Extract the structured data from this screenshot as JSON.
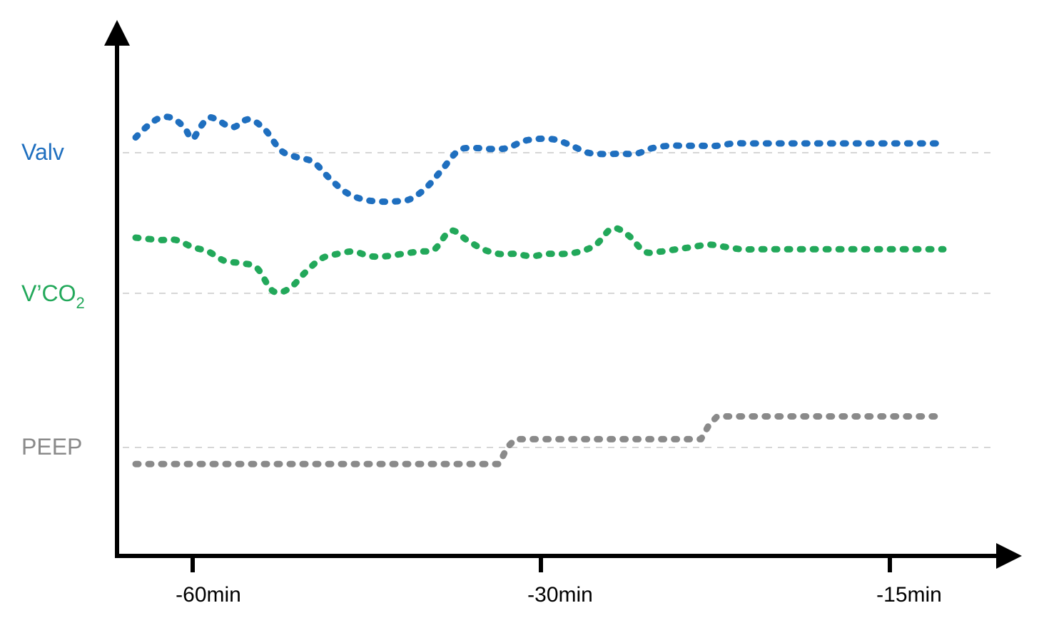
{
  "chart_data": {
    "type": "line",
    "grid": "dashed reference line per series",
    "colors": {
      "valv": "#1f6fbf",
      "vco2": "#22a85a",
      "peep": "#8a8a8a",
      "axis": "#000000",
      "reference": "#c8c8c8"
    },
    "x_ticks": [
      {
        "label": "-60min"
      },
      {
        "label": "-30min"
      },
      {
        "label": "-15min"
      }
    ],
    "series": [
      {
        "key": "valv",
        "label_main": "Valv",
        "label_sub": "",
        "color": "#1f6fbf",
        "x": [
          0,
          1.5,
          3,
          4.5,
          6,
          7,
          8,
          9,
          10,
          12,
          14,
          16,
          18,
          20,
          22,
          24,
          26,
          28,
          30,
          32,
          34,
          36,
          38,
          40,
          42,
          44,
          46,
          48,
          50,
          52,
          54,
          56,
          58,
          60,
          62,
          64,
          66,
          68,
          70,
          72,
          74,
          76,
          78,
          80,
          82,
          84,
          86,
          88,
          90,
          92,
          94,
          96,
          98,
          100
        ],
        "values": [
          0.33,
          0.58,
          0.75,
          0.75,
          0.55,
          0.3,
          0.55,
          0.75,
          0.72,
          0.55,
          0.72,
          0.5,
          0.05,
          -0.1,
          -0.2,
          -0.55,
          -0.85,
          -1.0,
          -1.05,
          -1.05,
          -1.0,
          -0.75,
          -0.35,
          0.05,
          0.1,
          0.08,
          0.1,
          0.25,
          0.3,
          0.28,
          0.15,
          0.0,
          -0.03,
          -0.02,
          -0.02,
          0.1,
          0.15,
          0.15,
          0.15,
          0.15,
          0.2,
          0.2,
          0.2,
          0.2,
          0.2,
          0.2,
          0.2,
          0.2,
          0.2,
          0.2,
          0.2,
          0.2,
          0.2,
          0.2
        ]
      },
      {
        "key": "vco2",
        "label_main": "V’CO",
        "label_sub": "2",
        "color": "#22a85a",
        "x": [
          0,
          3,
          5,
          7,
          9,
          11,
          13,
          15,
          17,
          19,
          21,
          23,
          25,
          27,
          29,
          31,
          33,
          35,
          37,
          39,
          41,
          43,
          45,
          47,
          49,
          51,
          53,
          55,
          57,
          59,
          61,
          63,
          65,
          67,
          69,
          71,
          73,
          75,
          77,
          79,
          81,
          83,
          85,
          87,
          89,
          91,
          93,
          95,
          97,
          100
        ],
        "values": [
          1.2,
          1.15,
          1.15,
          1.0,
          0.9,
          0.7,
          0.65,
          0.55,
          0.05,
          0.1,
          0.45,
          0.75,
          0.85,
          0.9,
          0.8,
          0.8,
          0.85,
          0.9,
          0.95,
          1.35,
          1.15,
          0.95,
          0.85,
          0.85,
          0.8,
          0.85,
          0.85,
          0.9,
          1.05,
          1.4,
          1.25,
          0.9,
          0.9,
          0.95,
          1.0,
          1.05,
          1.0,
          0.95,
          0.95,
          0.95,
          0.95,
          0.95,
          0.95,
          0.95,
          0.95,
          0.95,
          0.95,
          0.95,
          0.95,
          0.95
        ]
      },
      {
        "key": "peep",
        "label_main": "PEEP",
        "label_sub": "",
        "color": "#8a8a8a",
        "x": [
          0,
          45,
          46,
          47,
          70,
          71,
          72,
          100
        ],
        "values": [
          -0.4,
          -0.4,
          0.0,
          0.2,
          0.2,
          0.55,
          0.75,
          0.75
        ]
      }
    ]
  }
}
